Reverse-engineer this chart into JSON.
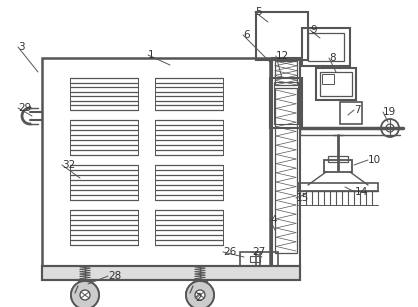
{
  "background_color": "#ffffff",
  "line_color": "#555555",
  "line_width": 1.2,
  "title": ""
}
